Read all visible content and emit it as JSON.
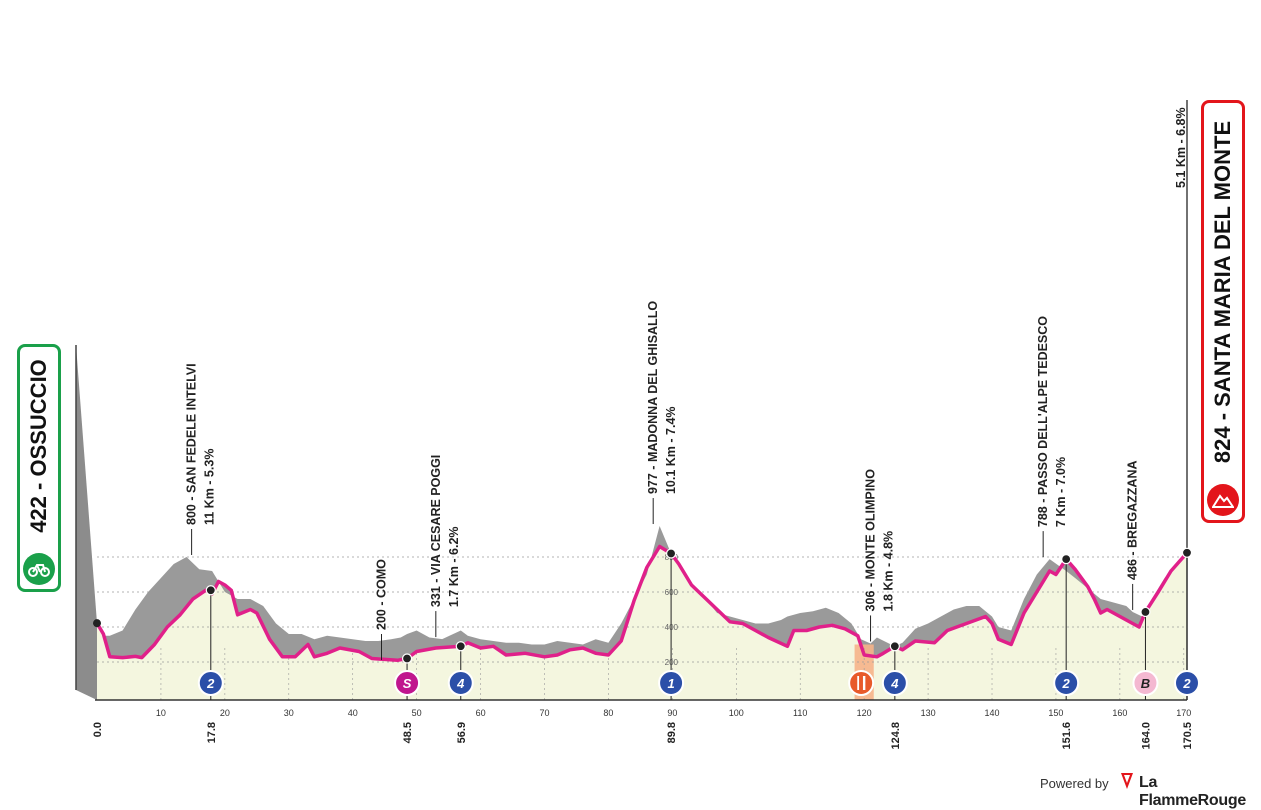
{
  "stage": {
    "start": {
      "label": "422 - OSSUCCIO",
      "icon": "bicycle-icon",
      "color": "#1aa04a"
    },
    "finish": {
      "label": "824 - SANTA MARIA DEL MONTE",
      "icon": "mountain-finish-icon",
      "color": "#e3151b"
    },
    "final_climb_label": "5.1 Km - 6.8%"
  },
  "chart_data": {
    "type": "area",
    "x_unit": "km",
    "y_unit": "m",
    "xlim": [
      0,
      170.5
    ],
    "x_ticks": [
      10,
      20,
      30,
      40,
      50,
      60,
      70,
      80,
      90,
      100,
      110,
      120,
      130,
      140,
      150,
      160,
      170
    ],
    "y_ticks": [
      200,
      400,
      600,
      800
    ],
    "colors": {
      "line": "#e0208a",
      "area": "#f4f6df",
      "shade": "#9a9a9a",
      "feed": "#f6b48a",
      "grid": "#9a9a9a"
    },
    "profile": [
      [
        0,
        422
      ],
      [
        1,
        360
      ],
      [
        2,
        230
      ],
      [
        4,
        225
      ],
      [
        6,
        232
      ],
      [
        7,
        225
      ],
      [
        9,
        300
      ],
      [
        11,
        400
      ],
      [
        13,
        470
      ],
      [
        15,
        560
      ],
      [
        17,
        610
      ],
      [
        18,
        590
      ],
      [
        19,
        660
      ],
      [
        20,
        640
      ],
      [
        21,
        610
      ],
      [
        22,
        470
      ],
      [
        24,
        500
      ],
      [
        25,
        480
      ],
      [
        27,
        330
      ],
      [
        29,
        230
      ],
      [
        31,
        230
      ],
      [
        33,
        300
      ],
      [
        34,
        230
      ],
      [
        36,
        250
      ],
      [
        38,
        280
      ],
      [
        41,
        260
      ],
      [
        43,
        220
      ],
      [
        45,
        215
      ],
      [
        47,
        210
      ],
      [
        48.5,
        220
      ],
      [
        50,
        260
      ],
      [
        53,
        280
      ],
      [
        56.9,
        290
      ],
      [
        58,
        310
      ],
      [
        60,
        280
      ],
      [
        62,
        290
      ],
      [
        64,
        240
      ],
      [
        67,
        250
      ],
      [
        70,
        230
      ],
      [
        72,
        240
      ],
      [
        74,
        270
      ],
      [
        76,
        280
      ],
      [
        78,
        250
      ],
      [
        80,
        240
      ],
      [
        82,
        320
      ],
      [
        84,
        550
      ],
      [
        86,
        740
      ],
      [
        88,
        860
      ],
      [
        89.8,
        820
      ],
      [
        91,
        760
      ],
      [
        93,
        640
      ],
      [
        95,
        570
      ],
      [
        97,
        500
      ],
      [
        99,
        430
      ],
      [
        101,
        420
      ],
      [
        103,
        380
      ],
      [
        105,
        340
      ],
      [
        108,
        290
      ],
      [
        109,
        380
      ],
      [
        111,
        380
      ],
      [
        113,
        400
      ],
      [
        115,
        410
      ],
      [
        117,
        390
      ],
      [
        119,
        350
      ],
      [
        120,
        240
      ],
      [
        122,
        230
      ],
      [
        123,
        250
      ],
      [
        124.8,
        290
      ],
      [
        126,
        270
      ],
      [
        128,
        320
      ],
      [
        131,
        310
      ],
      [
        133,
        380
      ],
      [
        136,
        420
      ],
      [
        139,
        460
      ],
      [
        140,
        420
      ],
      [
        141,
        330
      ],
      [
        143,
        300
      ],
      [
        145,
        480
      ],
      [
        147,
        600
      ],
      [
        149,
        720
      ],
      [
        150,
        700
      ],
      [
        151.6,
        788
      ],
      [
        153,
        730
      ],
      [
        155,
        630
      ],
      [
        156,
        560
      ],
      [
        157,
        480
      ],
      [
        158,
        500
      ],
      [
        160,
        460
      ],
      [
        162,
        420
      ],
      [
        163,
        400
      ],
      [
        164,
        486
      ],
      [
        166,
        600
      ],
      [
        168,
        720
      ],
      [
        170.5,
        824
      ]
    ],
    "shade_profile": [
      [
        0,
        422
      ],
      [
        1,
        350
      ],
      [
        2,
        350
      ],
      [
        4,
        380
      ],
      [
        6,
        500
      ],
      [
        8,
        600
      ],
      [
        10,
        680
      ],
      [
        12,
        760
      ],
      [
        14,
        800
      ],
      [
        16,
        730
      ],
      [
        18,
        720
      ],
      [
        20,
        600
      ],
      [
        22,
        560
      ],
      [
        24,
        560
      ],
      [
        26,
        520
      ],
      [
        28,
        420
      ],
      [
        30,
        360
      ],
      [
        32,
        360
      ],
      [
        34,
        330
      ],
      [
        36,
        350
      ],
      [
        38,
        340
      ],
      [
        40,
        330
      ],
      [
        42,
        320
      ],
      [
        44,
        320
      ],
      [
        46,
        330
      ],
      [
        47.5,
        340
      ],
      [
        48.5,
        360
      ],
      [
        50,
        380
      ],
      [
        52,
        340
      ],
      [
        54,
        331
      ],
      [
        56.9,
        380
      ],
      [
        58,
        350
      ],
      [
        60,
        330
      ],
      [
        62,
        320
      ],
      [
        64,
        310
      ],
      [
        66,
        310
      ],
      [
        68,
        300
      ],
      [
        70,
        300
      ],
      [
        72,
        320
      ],
      [
        74,
        310
      ],
      [
        76,
        300
      ],
      [
        78,
        330
      ],
      [
        80,
        310
      ],
      [
        82,
        420
      ],
      [
        84,
        560
      ],
      [
        86,
        700
      ],
      [
        88,
        977
      ],
      [
        89.8,
        820
      ],
      [
        91,
        760
      ],
      [
        93,
        640
      ],
      [
        95,
        570
      ],
      [
        97,
        480
      ],
      [
        99,
        460
      ],
      [
        101,
        440
      ],
      [
        103,
        420
      ],
      [
        105,
        420
      ],
      [
        107,
        440
      ],
      [
        108,
        460
      ],
      [
        110,
        480
      ],
      [
        112,
        490
      ],
      [
        114,
        510
      ],
      [
        116,
        480
      ],
      [
        118,
        420
      ],
      [
        119.5,
        330
      ],
      [
        121,
        306
      ],
      [
        122,
        340
      ],
      [
        124.8,
        290
      ],
      [
        126,
        310
      ],
      [
        128,
        390
      ],
      [
        130,
        420
      ],
      [
        132,
        460
      ],
      [
        134,
        500
      ],
      [
        136,
        520
      ],
      [
        138,
        520
      ],
      [
        140,
        460
      ],
      [
        141,
        400
      ],
      [
        143,
        380
      ],
      [
        145,
        560
      ],
      [
        147,
        700
      ],
      [
        149,
        788
      ],
      [
        151.6,
        720
      ],
      [
        153,
        680
      ],
      [
        155,
        620
      ],
      [
        157,
        560
      ],
      [
        159,
        540
      ],
      [
        161,
        520
      ],
      [
        162,
        486
      ],
      [
        163.5,
        460
      ],
      [
        165,
        560
      ],
      [
        167,
        680
      ],
      [
        168.5,
        740
      ],
      [
        170.5,
        824
      ]
    ],
    "markers": [
      {
        "km": 17.8,
        "alt": 610,
        "km_label": "17.8",
        "badge": "2",
        "badge_color": "#2b4fa8"
      },
      {
        "km": 48.5,
        "alt": 220,
        "km_label": "48.5",
        "badge": "S",
        "badge_color": "#c0168e"
      },
      {
        "km": 56.9,
        "alt": 290,
        "km_label": "56.9",
        "badge": "4",
        "badge_color": "#2b4fa8"
      },
      {
        "km": 89.8,
        "alt": 820,
        "km_label": "89.8",
        "badge": "1",
        "badge_color": "#2b4fa8"
      },
      {
        "km": 124.8,
        "alt": 290,
        "km_label": "124.8",
        "badge": "4",
        "badge_color": "#2b4fa8"
      },
      {
        "km": 151.6,
        "alt": 788,
        "km_label": "151.6",
        "badge": "2",
        "badge_color": "#2b4fa8"
      },
      {
        "km": 164.0,
        "alt": 486,
        "km_label": "164.0",
        "badge": "B",
        "badge_color": "#f4b8d1"
      },
      {
        "km": 170.5,
        "alt": 824,
        "km_label": "170.5",
        "badge": "2",
        "badge_color": "#2b4fa8"
      }
    ],
    "start_km_label": "0.0",
    "feed_zone": {
      "from_km": 118.5,
      "to_km": 121.5,
      "icon": "fork-knife-icon"
    },
    "annotations": [
      {
        "km": 14.8,
        "alt": 800,
        "lines": [
          "800 - SAN FEDELE INTELVI",
          "11 Km - 5.3%"
        ]
      },
      {
        "km": 44.5,
        "alt": 200,
        "lines": [
          "200 - COMO"
        ]
      },
      {
        "km": 53.0,
        "alt": 331,
        "lines": [
          "331 - VIA CESARE POGGI",
          "1.7 Km - 6.2%"
        ]
      },
      {
        "km": 87.0,
        "alt": 977,
        "lines": [
          "977 - MADONNA DEL GHISALLO",
          "10.1 Km - 7.4%"
        ]
      },
      {
        "km": 121.0,
        "alt": 306,
        "lines": [
          "306 - MONTE OLIMPINO",
          "1.8 Km - 4.8%"
        ]
      },
      {
        "km": 148.0,
        "alt": 788,
        "lines": [
          "788 - PASSO DELL'ALPE TEDESCO",
          "7 Km - 7.0%"
        ]
      },
      {
        "km": 162.0,
        "alt": 486,
        "lines": [
          "486 - BREGAZZANA"
        ]
      }
    ]
  },
  "footer": {
    "powered_by": "Powered by",
    "brand": "La FlammeRouge"
  }
}
